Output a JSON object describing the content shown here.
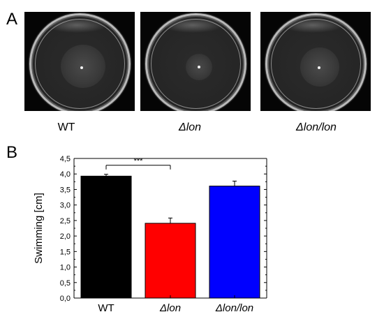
{
  "panels": {
    "a": "A",
    "b": "B"
  },
  "strain_labels": {
    "wt": "WT",
    "dlon": "Δlon",
    "dlonlon": "Δlon/lon"
  },
  "chart_data": {
    "type": "bar",
    "categories": [
      "WT",
      "Δlon",
      "Δlon/lon"
    ],
    "values": [
      3.93,
      2.41,
      3.61
    ],
    "errors": [
      0.06,
      0.17,
      0.16
    ],
    "colors": [
      "#000000",
      "#ff0000",
      "#0000ff"
    ],
    "ylabel": "Swimming [cm]",
    "xlabel": "",
    "ylim": [
      0,
      4.5
    ],
    "yticks": [
      "0,0",
      "0,5",
      "1,0",
      "1,5",
      "2,0",
      "2,5",
      "3,0",
      "3,5",
      "4,0",
      "4,5"
    ],
    "significance": {
      "from": "WT",
      "to": "Δlon",
      "label": "***"
    },
    "grid": false
  }
}
